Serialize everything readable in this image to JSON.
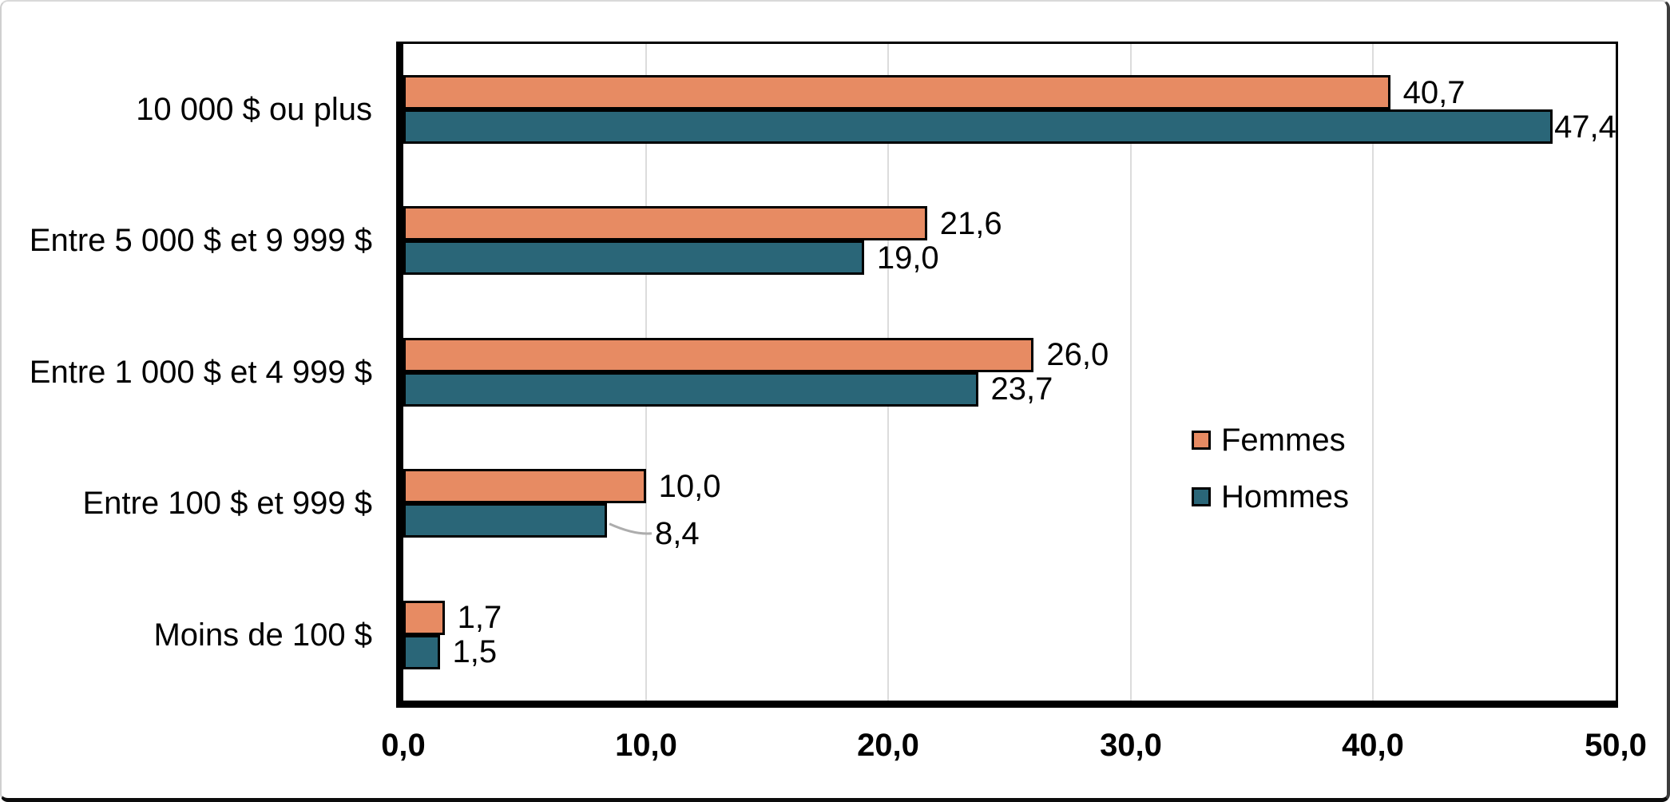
{
  "chart_data": {
    "type": "bar",
    "orientation": "horizontal",
    "title": "",
    "xlabel": "",
    "ylabel": "",
    "categories": [
      "10 000 $ ou plus",
      "Entre 5 000 $ et 9 999 $",
      "Entre 1 000 $ et 4 999 $",
      "Entre 100 $ et 999 $",
      "Moins de 100 $"
    ],
    "series": [
      {
        "name": "Femmes",
        "color": "#E78B63",
        "values": [
          40.7,
          21.6,
          26.0,
          10.0,
          1.7
        ],
        "value_labels": [
          "40,7",
          "21,6",
          "26,0",
          "10,0",
          "1,7"
        ]
      },
      {
        "name": "Hommes",
        "color": "#2A6678",
        "values": [
          47.4,
          19.0,
          23.7,
          8.4,
          1.5
        ],
        "value_labels": [
          "47,4",
          "19,0",
          "23,7",
          "8,4",
          "1,5"
        ]
      }
    ],
    "xlim": [
      0,
      50
    ],
    "x_ticks": [
      "0,0",
      "10,0",
      "20,0",
      "30,0",
      "40,0",
      "50,0"
    ],
    "grid": "vertical",
    "gridline_color": "#DCDCDC",
    "bar_border_color": "#000000",
    "legend": {
      "position": "middle-right",
      "entries": [
        "Femmes",
        "Hommes"
      ]
    },
    "callout": {
      "series": "Hommes",
      "category_index": 3,
      "label": "8,4",
      "leader_line_color": "#ADADAD"
    }
  }
}
